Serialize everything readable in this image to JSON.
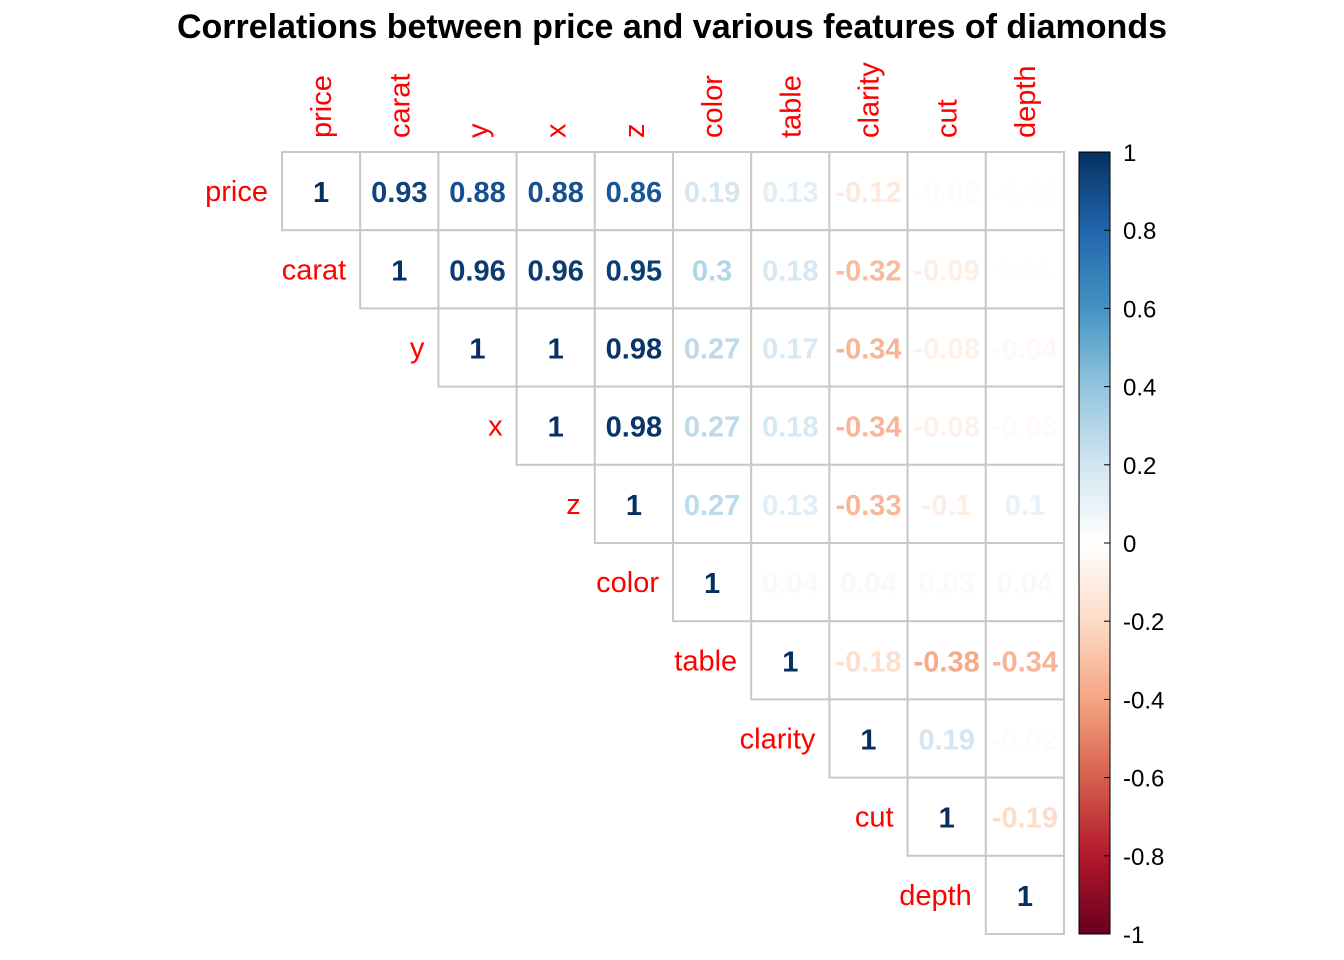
{
  "chart_data": {
    "type": "heatmap",
    "title": "Correlations between price and various features of diamonds",
    "variables": [
      "price",
      "carat",
      "y",
      "x",
      "z",
      "color",
      "table",
      "clarity",
      "cut",
      "depth"
    ],
    "matrix_layout": "upper-triangle",
    "matrix": [
      [
        1,
        0.93,
        0.88,
        0.88,
        0.86,
        0.19,
        0.13,
        -0.12,
        -0.02,
        -0.01
      ],
      [
        null,
        1,
        0.96,
        0.96,
        0.95,
        0.3,
        0.18,
        -0.32,
        -0.09,
        0.01
      ],
      [
        null,
        null,
        1,
        1,
        0.98,
        0.27,
        0.17,
        -0.34,
        -0.08,
        -0.04
      ],
      [
        null,
        null,
        null,
        1,
        0.98,
        0.27,
        0.18,
        -0.34,
        -0.08,
        -0.03
      ],
      [
        null,
        null,
        null,
        null,
        1,
        0.27,
        0.13,
        -0.33,
        -0.1,
        0.1
      ],
      [
        null,
        null,
        null,
        null,
        null,
        1,
        0.04,
        0.04,
        0.03,
        0.04
      ],
      [
        null,
        null,
        null,
        null,
        null,
        null,
        1,
        -0.18,
        -0.38,
        -0.34
      ],
      [
        null,
        null,
        null,
        null,
        null,
        null,
        null,
        1,
        0.19,
        -0.02
      ],
      [
        null,
        null,
        null,
        null,
        null,
        null,
        null,
        null,
        1,
        -0.19
      ],
      [
        null,
        null,
        null,
        null,
        null,
        null,
        null,
        null,
        null,
        1
      ]
    ],
    "colorbar": {
      "range": [
        -1,
        1
      ],
      "ticks": [
        "1",
        "0.8",
        "0.6",
        "0.4",
        "0.2",
        "0",
        "-0.2",
        "-0.4",
        "-0.6",
        "-0.8",
        "-1"
      ]
    },
    "colors": {
      "label": "#ff0000",
      "grid": "#c8c8c8",
      "neg_end": "#67001f",
      "pos_end": "#053061"
    }
  }
}
